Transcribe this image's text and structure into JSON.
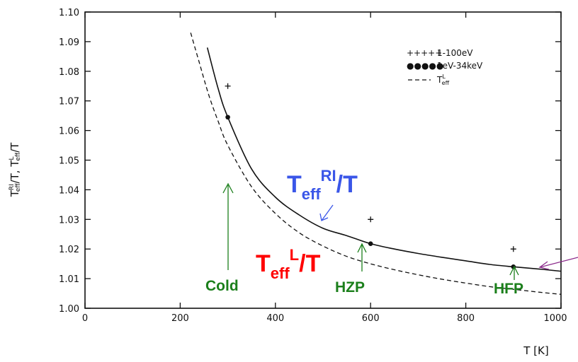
{
  "chart_data": {
    "type": "line",
    "xlabel": "T  [K]",
    "ylabel_main": "T",
    "ylabel_sup1": "RI",
    "ylabel_sub1": "eff",
    "ylabel_mid": "/T,  T",
    "ylabel_sup2": "L",
    "ylabel_sub2": "eff",
    "ylabel_end": "/T",
    "xlim": [
      0,
      1000
    ],
    "ylim": [
      1.0,
      1.1
    ],
    "xticks": [
      "0",
      "200",
      "400",
      "600",
      "800",
      "1000"
    ],
    "yticks": [
      "1.00",
      "1.01",
      "1.02",
      "1.03",
      "1.04",
      "1.05",
      "1.06",
      "1.07",
      "1.08",
      "1.09",
      "1.10"
    ],
    "legend": [
      {
        "marker": "+++++",
        "label": "1-100eV"
      },
      {
        "marker": "●●●●●",
        "label": "1eV-34keV"
      },
      {
        "marker": "- - -",
        "label": "T",
        "label_sup": "L",
        "label_sub": "eff"
      }
    ],
    "series": [
      {
        "style": "solid",
        "x": [
          257,
          280,
          300,
          350,
          400,
          450,
          500,
          550,
          600,
          650,
          700,
          750,
          800,
          850,
          900,
          950,
          1000
        ],
        "y": [
          1.088,
          1.074,
          1.0645,
          1.047,
          1.0375,
          1.0315,
          1.027,
          1.0245,
          1.0218,
          1.02,
          1.0185,
          1.0172,
          1.016,
          1.0148,
          1.014,
          1.0133,
          1.0125
        ]
      },
      {
        "style": "dashed",
        "x": [
          222,
          240,
          260,
          280,
          300,
          350,
          400,
          450,
          500,
          550,
          600,
          650,
          700,
          750,
          800,
          850,
          900,
          950,
          1000
        ],
        "y": [
          1.093,
          1.083,
          1.072,
          1.063,
          1.055,
          1.041,
          1.032,
          1.0255,
          1.021,
          1.0175,
          1.015,
          1.013,
          1.0113,
          1.0098,
          1.0085,
          1.0073,
          1.0064,
          1.0055,
          1.0047
        ]
      },
      {
        "style": "plus-markers",
        "x": [
          300,
          600,
          900
        ],
        "y": [
          1.075,
          1.03,
          1.02
        ]
      },
      {
        "style": "dot-markers",
        "x": [
          300,
          600,
          900
        ],
        "y": [
          1.0645,
          1.0218,
          1.014
        ]
      }
    ]
  },
  "annotations": {
    "ri_main": "T",
    "ri_sub": "eff",
    "ri_sup": "RI",
    "ri_end": "/T",
    "l_main": "T",
    "l_sub": "eff",
    "l_sup": "L",
    "l_end": "/T",
    "cold": "Cold",
    "hzp": "HZP",
    "hfp": "HFP",
    "color_blue": "#3a56e8",
    "color_red": "#ff0000",
    "color_green": "#1b7f1b",
    "color_purple": "#8b2a8b"
  }
}
